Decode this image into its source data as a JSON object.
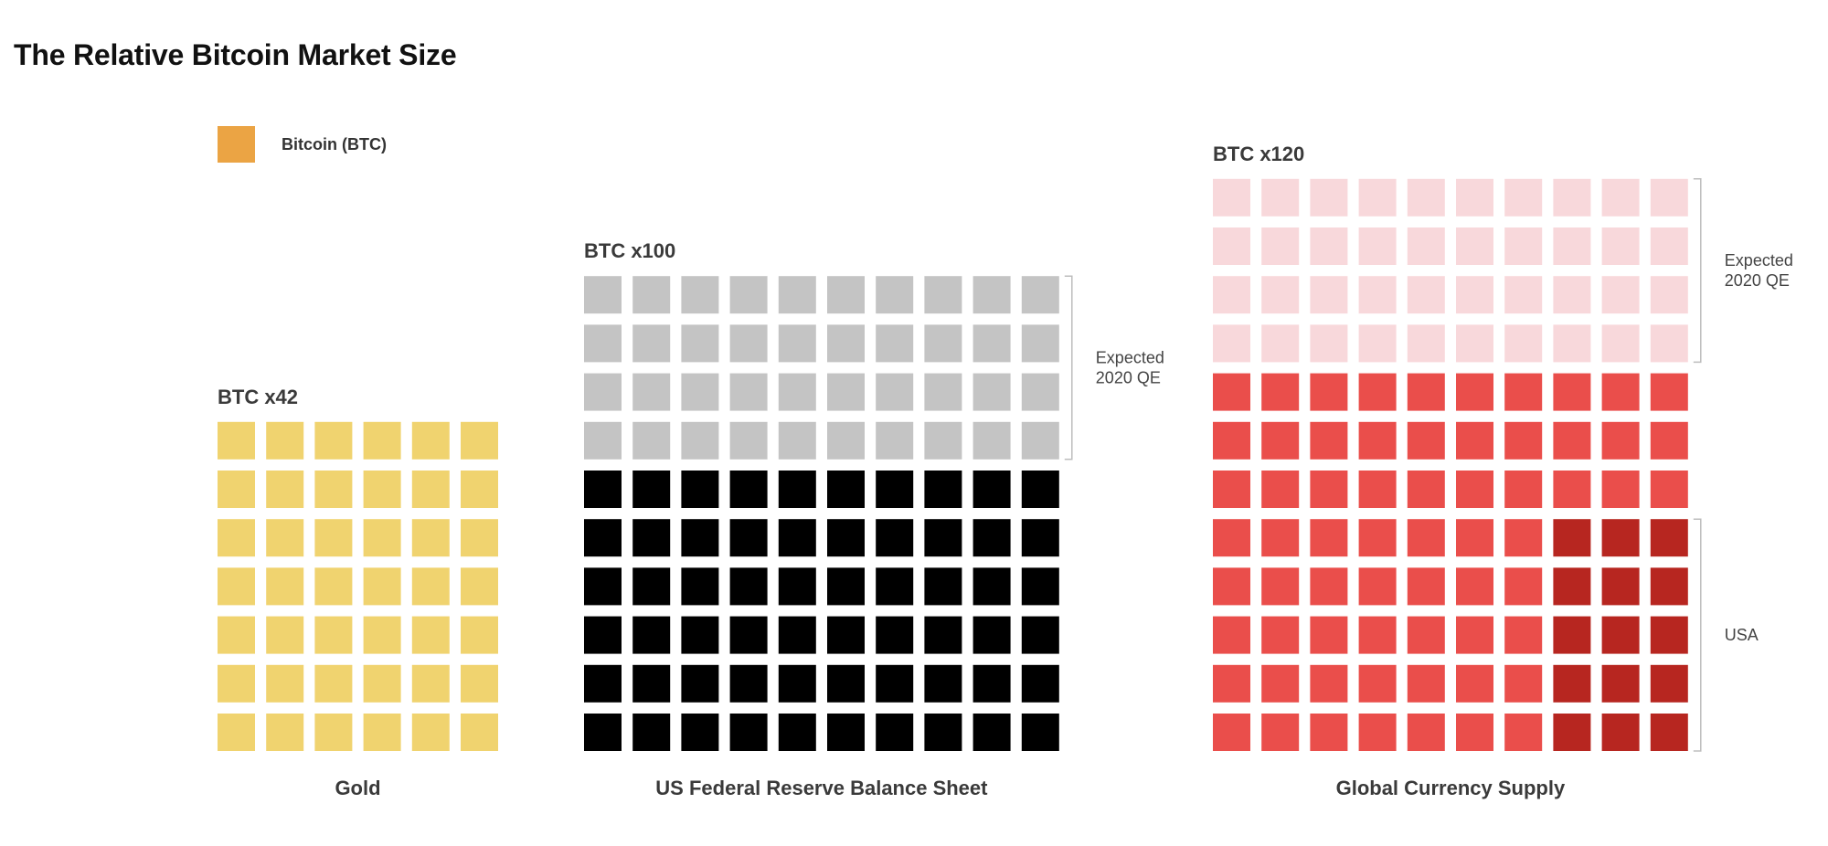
{
  "title": "The Relative Bitcoin Market Size",
  "legend": {
    "label": "Bitcoin (BTC)",
    "color": "#EBA444"
  },
  "chart_data": {
    "type": "waffle",
    "title": "The Relative Bitcoin Market Size",
    "legend": [
      {
        "name": "Bitcoin (BTC)",
        "color": "#EBA444"
      }
    ],
    "panels": [
      {
        "label": "Gold",
        "multiple_label": "BTC x42",
        "multiple": 42,
        "columns": 6,
        "rows": 7,
        "groups": [
          {
            "count": 42,
            "color": "#F0D36F"
          }
        ],
        "annotations": []
      },
      {
        "label": "US Federal Reserve Balance Sheet",
        "multiple_label": "BTC x100",
        "multiple": 100,
        "columns": 10,
        "rows": 10,
        "groups": [
          {
            "count": 40,
            "color": "#C4C4C4"
          },
          {
            "count": 60,
            "color": "#000000"
          }
        ],
        "annotations": [
          {
            "text": [
              "Expected",
              "2020 QE"
            ],
            "row_start": 1,
            "row_end": 4
          }
        ]
      },
      {
        "label": "Global Currency Supply",
        "multiple_label": "BTC x120",
        "multiple": 120,
        "columns": 10,
        "rows": 12,
        "groups": [
          {
            "count": 40,
            "color": "#F8D8DB"
          },
          {
            "count": 65,
            "color": "#EA4E4B"
          },
          {
            "count": 15,
            "color": "#B72620"
          }
        ],
        "cell_colors": {
          "default": "#EA4E4B",
          "expected_qe_rows": [
            1,
            2,
            3,
            4
          ],
          "expected_qe_color": "#F8D8DB",
          "usa_rows": [
            8,
            9,
            10,
            11,
            12
          ],
          "usa_columns": [
            8,
            9,
            10
          ],
          "usa_color": "#B72620"
        },
        "annotations": [
          {
            "text": [
              "Expected",
              "2020 QE"
            ],
            "row_start": 1,
            "row_end": 4
          },
          {
            "text": [
              "USA"
            ],
            "row_start": 8,
            "row_end": 12
          }
        ]
      }
    ]
  }
}
